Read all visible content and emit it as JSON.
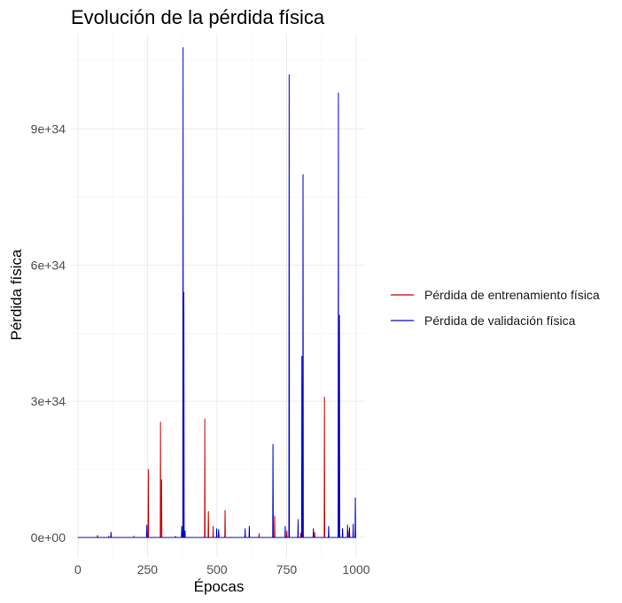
{
  "chart_data": {
    "type": "line",
    "title": "Evolución de la pérdida física",
    "xlabel": "Épocas",
    "ylabel": "Pérdida física",
    "xlim": [
      -25,
      1035
    ],
    "ylim": [
      -4.5e+33,
      1.11e+35
    ],
    "x_ticks": [
      0,
      250,
      500,
      750,
      1000
    ],
    "x_tick_labels": [
      "0",
      "250",
      "500",
      "750",
      "1000"
    ],
    "y_ticks": [
      0,
      3e+34,
      6e+34,
      9e+34
    ],
    "y_tick_labels": [
      "0e+00",
      "3e+34",
      "6e+34",
      "9e+34"
    ],
    "grid": true,
    "legend_position": "right",
    "series": [
      {
        "name": "Pérdida de entrenamiento física",
        "color": "#cc0000",
        "points": [
          [
            0,
            0
          ],
          [
            70,
            0
          ],
          [
            71,
            5e+32
          ],
          [
            72,
            0
          ],
          [
            110,
            0
          ],
          [
            111,
            3e+32
          ],
          [
            112,
            0
          ],
          [
            200,
            0
          ],
          [
            201,
            2e+32
          ],
          [
            202,
            0
          ],
          [
            252,
            0
          ],
          [
            253,
            1.5e+34
          ],
          [
            254,
            0
          ],
          [
            296,
            0
          ],
          [
            297,
            2.55e+34
          ],
          [
            298,
            0
          ],
          [
            300,
            0
          ],
          [
            301,
            1.28e+34
          ],
          [
            302,
            0
          ],
          [
            350,
            0
          ],
          [
            351,
            3e+32
          ],
          [
            352,
            0
          ],
          [
            455,
            0
          ],
          [
            456,
            2.62e+34
          ],
          [
            457,
            0
          ],
          [
            468,
            0
          ],
          [
            469,
            5.8e+33
          ],
          [
            470,
            0
          ],
          [
            485,
            0
          ],
          [
            486,
            2.5e+33
          ],
          [
            487,
            0
          ],
          [
            528,
            0
          ],
          [
            529,
            6e+33
          ],
          [
            530,
            0
          ],
          [
            600,
            0
          ],
          [
            601,
            8e+32
          ],
          [
            602,
            0
          ],
          [
            650,
            0
          ],
          [
            651,
            9e+32
          ],
          [
            652,
            0
          ],
          [
            706,
            0
          ],
          [
            707,
            4.8e+33
          ],
          [
            708,
            0
          ],
          [
            750,
            0
          ],
          [
            751,
            1.5e+33
          ],
          [
            752,
            0
          ],
          [
            800,
            0
          ],
          [
            801,
            1e+33
          ],
          [
            802,
            0
          ],
          [
            850,
            0
          ],
          [
            851,
            1.2e+33
          ],
          [
            852,
            0
          ],
          [
            885,
            0
          ],
          [
            886,
            3.1e+34
          ],
          [
            887,
            0
          ],
          [
            940,
            0
          ],
          [
            941,
            1e+33
          ],
          [
            942,
            0
          ],
          [
            970,
            0
          ],
          [
            971,
            1.5e+33
          ],
          [
            972,
            0
          ],
          [
            1000,
            0
          ]
        ]
      },
      {
        "name": "Pérdida de validación física",
        "color": "#0000cc",
        "points": [
          [
            0,
            0
          ],
          [
            118,
            0
          ],
          [
            119,
            1.2e+33
          ],
          [
            120,
            0
          ],
          [
            247,
            0
          ],
          [
            248,
            2.8e+33
          ],
          [
            249,
            0
          ],
          [
            372,
            0
          ],
          [
            373,
            2.5e+33
          ],
          [
            374,
            0
          ],
          [
            377,
            0
          ],
          [
            378,
            1.08e+35
          ],
          [
            379,
            0
          ],
          [
            380,
            0
          ],
          [
            381,
            5.4e+34
          ],
          [
            382,
            0
          ],
          [
            384,
            0
          ],
          [
            385,
            1.5e+33
          ],
          [
            386,
            0
          ],
          [
            498,
            0
          ],
          [
            499,
            2e+33
          ],
          [
            500,
            0
          ],
          [
            505,
            0
          ],
          [
            506,
            1.8e+33
          ],
          [
            507,
            0
          ],
          [
            600,
            0
          ],
          [
            601,
            2e+33
          ],
          [
            602,
            0
          ],
          [
            615,
            0
          ],
          [
            616,
            2.5e+33
          ],
          [
            617,
            0
          ],
          [
            700,
            0
          ],
          [
            701,
            2.06e+34
          ],
          [
            702,
            0
          ],
          [
            744,
            0
          ],
          [
            745,
            2.5e+33
          ],
          [
            746,
            0
          ],
          [
            758,
            0
          ],
          [
            759,
            1.02e+35
          ],
          [
            760,
            0
          ],
          [
            790,
            0
          ],
          [
            791,
            4e+33
          ],
          [
            792,
            0
          ],
          [
            804,
            0
          ],
          [
            805,
            4e+34
          ],
          [
            806,
            0
          ],
          [
            808,
            0
          ],
          [
            809,
            8e+34
          ],
          [
            810,
            0
          ],
          [
            845,
            0
          ],
          [
            846,
            2e+33
          ],
          [
            847,
            0
          ],
          [
            900,
            0
          ],
          [
            901,
            2.5e+33
          ],
          [
            902,
            0
          ],
          [
            935,
            0
          ],
          [
            936,
            9.8e+34
          ],
          [
            937,
            0
          ],
          [
            939,
            0
          ],
          [
            940,
            4.9e+34
          ],
          [
            941,
            0
          ],
          [
            950,
            0
          ],
          [
            951,
            2e+33
          ],
          [
            952,
            0
          ],
          [
            968,
            0
          ],
          [
            969,
            2.8e+33
          ],
          [
            970,
            0
          ],
          [
            975,
            0
          ],
          [
            976,
            2.2e+33
          ],
          [
            977,
            0
          ],
          [
            988,
            0
          ],
          [
            989,
            3e+33
          ],
          [
            990,
            0
          ],
          [
            996,
            0
          ],
          [
            997,
            8.8e+33
          ],
          [
            998,
            0
          ],
          [
            1000,
            0
          ]
        ]
      }
    ]
  }
}
